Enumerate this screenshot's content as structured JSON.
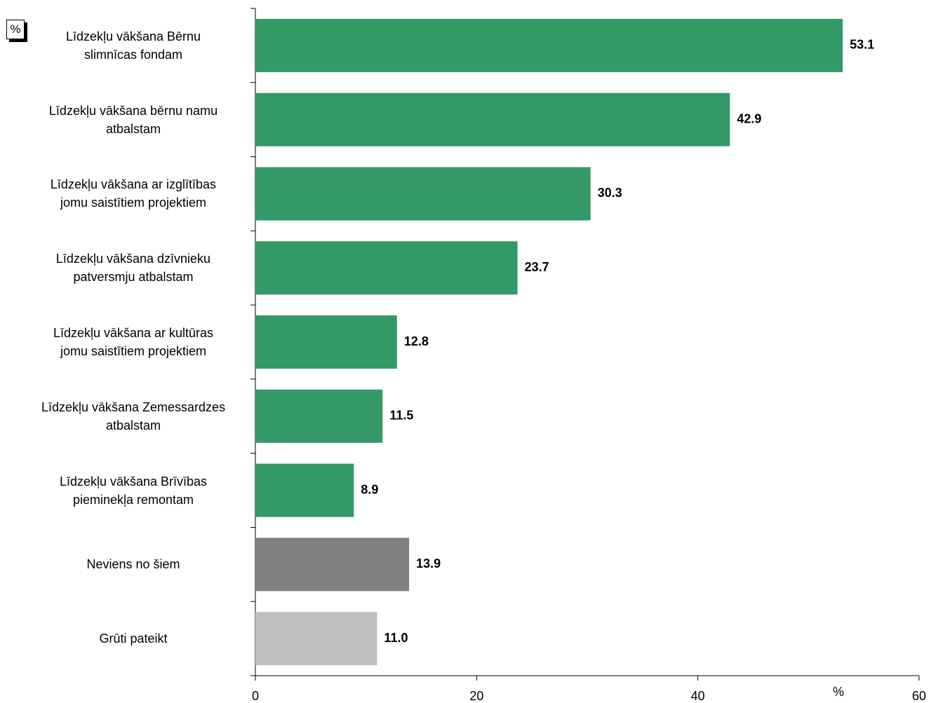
{
  "chart_data": {
    "type": "hbar",
    "corner_label": "%",
    "xlabel": "%",
    "categories": [
      "Līdzekļu vākšana Bērnu\nslimnīcas fondam",
      "Līdzekļu vākšana bērnu namu\natbalstam",
      "Līdzekļu vākšana ar izglītības\njomu saistītiem projektiem",
      "Līdzekļu vākšana dzīvnieku\npatversmju atbalstam",
      "Līdzekļu vākšana ar kultūras\njomu saistītiem projektiem",
      "Līdzekļu vākšana Zemessardzes\natbalstam",
      "Līdzekļu vākšana Brīvības\npieminekļa remontam",
      "Neviens no šiem",
      "Grūti pateikt"
    ],
    "values": [
      53.1,
      42.9,
      30.3,
      23.7,
      12.8,
      11.5,
      8.9,
      13.9,
      11.0
    ],
    "value_labels": [
      "53.1",
      "42.9",
      "30.3",
      "23.7",
      "12.8",
      "11.5",
      "8.9",
      "13.9",
      "11.0"
    ],
    "colors": [
      "#339966",
      "#339966",
      "#339966",
      "#339966",
      "#339966",
      "#339966",
      "#339966",
      "#808080",
      "#c0c0c0"
    ],
    "xlim": [
      0,
      60
    ],
    "xticks": [
      0,
      20,
      40,
      60
    ],
    "grid": false
  }
}
